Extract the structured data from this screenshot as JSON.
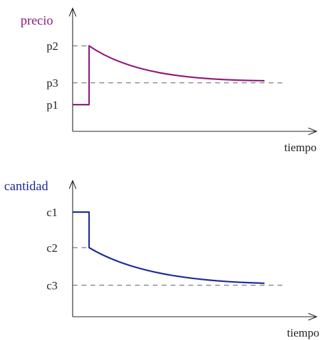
{
  "top": {
    "title": "precio",
    "xlabel": "tiempo",
    "levels": {
      "p1": "p1",
      "p2": "p2",
      "p3": "p3"
    },
    "color": "#8e1a7e"
  },
  "bottom": {
    "title": "cantidad",
    "xlabel": "tiempo",
    "levels": {
      "c1": "c1",
      "c2": "c2",
      "c3": "c3"
    },
    "color": "#1f2b9a"
  }
}
